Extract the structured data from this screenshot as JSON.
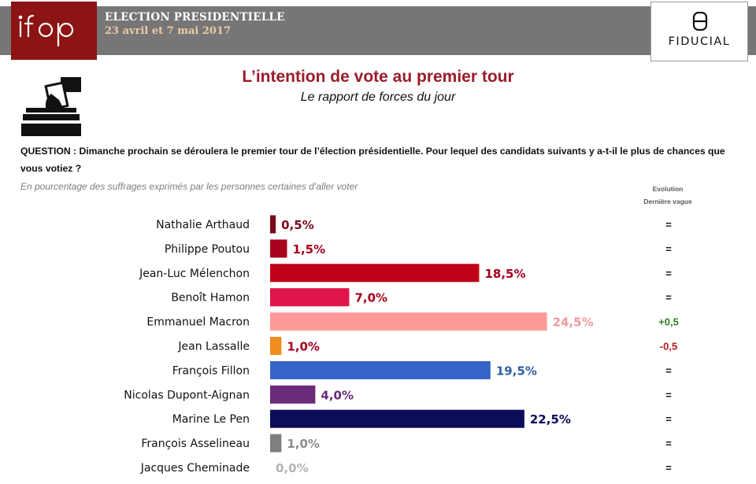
{
  "header": {
    "logo": "ifop",
    "title": "ELECTION PRESIDENTIELLE",
    "dates": "23 avril et 7 mai 2017",
    "sponsor": "FIDUCIAL"
  },
  "icons": {
    "ballot": "ballot-box-icon"
  },
  "survey": {
    "question": "QUESTION : Dimanche prochain se déroulera le premier tour de l’élection présidentielle. Pour lequel des candidats suivants y a-t-il le plus de chances que vous votiez ?",
    "note": "En pourcentage des suffrages exprimés par les personnes certaines d’aller voter",
    "evolution_header_line1": "Evolution",
    "evolution_header_line2": "Dernière vague"
  },
  "chart_data": {
    "type": "bar",
    "orientation": "horizontal",
    "title": "L’intention de vote au premier tour",
    "subtitle": "Le rapport de forces du jour",
    "categories": [
      "Nathalie Arthaud",
      "Philippe Poutou",
      "Jean-Luc Mélenchon",
      "Benoît Hamon",
      "Emmanuel Macron",
      "Jean Lassalle",
      "François Fillon",
      "Nicolas Dupont-Aignan",
      "Marine Le Pen",
      "François Asselineau",
      "Jacques Cheminade"
    ],
    "values": [
      0.5,
      1.5,
      18.5,
      7.0,
      24.5,
      1.0,
      19.5,
      4.0,
      22.5,
      1.0,
      0.0
    ],
    "value_labels": [
      "0,5%",
      "1,5%",
      "18,5%",
      "7,0%",
      "24,5%",
      "1,0%",
      "19,5%",
      "4,0%",
      "22,5%",
      "1,0%",
      "0,0%"
    ],
    "evolution": [
      "=",
      "=",
      "=",
      "=",
      "+0,5",
      "-0,5",
      "=",
      "=",
      "=",
      "=",
      "="
    ],
    "colors": [
      "#7a0a18",
      "#a5001c",
      "#c00016",
      "#e0144c",
      "#ff9a9a",
      "#ef8e1c",
      "#3565c8",
      "#6a2a7a",
      "#0c0c5a",
      "#7f7f7f",
      "#b4b4b4"
    ],
    "label_colors": [
      "#7a0a18",
      "#a5001c",
      "#a5001c",
      "#a5001c",
      "#f19a9a",
      "#a5001c",
      "#2e5fa3",
      "#6a2a7a",
      "#0c0c5a",
      "#8c8c8c",
      "#b4b4b4"
    ],
    "evolution_colors": {
      "up": "#2e7d1f",
      "down": "#b01c1c",
      "neutral": "#111111"
    },
    "xlim": [
      0,
      25
    ]
  }
}
